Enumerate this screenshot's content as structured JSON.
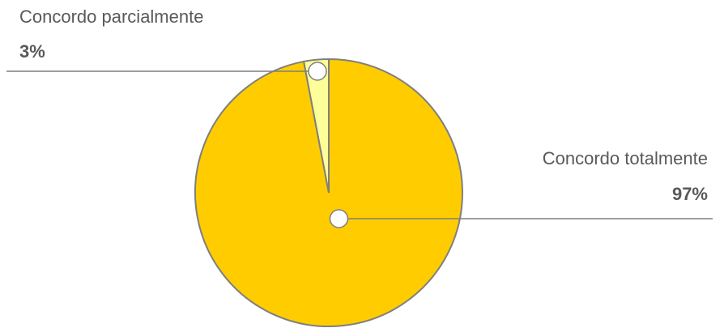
{
  "chart_data": {
    "type": "pie",
    "categories": [
      "Concordo totalmente",
      "Concordo parcialmente"
    ],
    "values": [
      97,
      3
    ],
    "value_labels": [
      "97%",
      "3%"
    ],
    "colors": [
      "#ffcc00",
      "#ffff99"
    ]
  }
}
